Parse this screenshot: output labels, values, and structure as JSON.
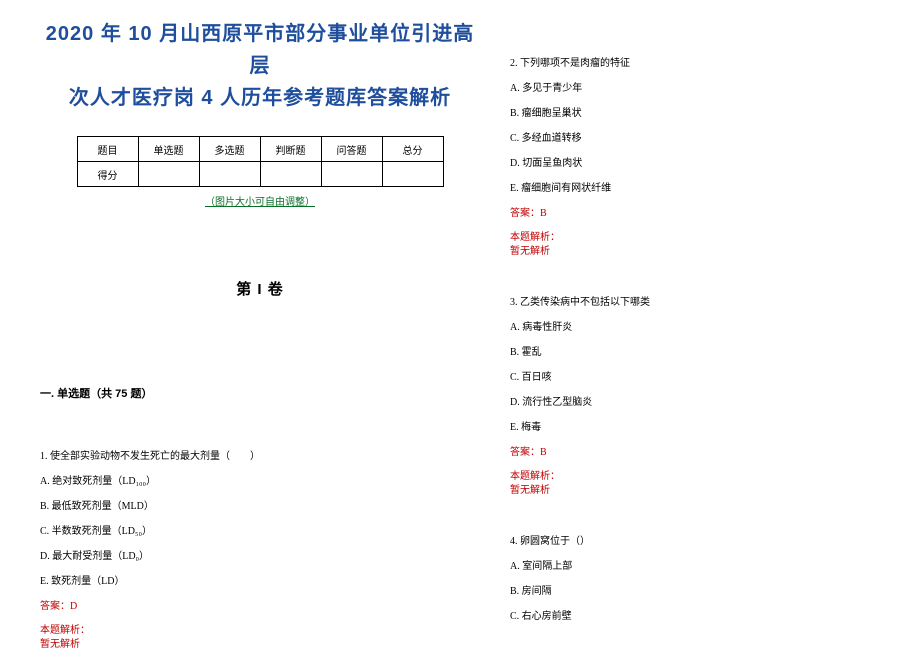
{
  "title_line1": "2020 年 10 月山西原平市部分事业单位引进高层",
  "title_line2": "次人才医疗岗 4 人历年参考题库答案解析",
  "score_table": {
    "header": [
      "题目",
      "单选题",
      "多选题",
      "判断题",
      "问答题",
      "总分"
    ],
    "row_label": "得分"
  },
  "adjust_note": "（图片大小可自由调整）",
  "volume_label": "第 I 卷",
  "section_single": "一. 单选题（共 75 题）",
  "answer_prefix": "答案：",
  "explain_label": "本题解析：",
  "no_explain": "暂无解析",
  "q1": {
    "stem": "1. 使全部实验动物不发生死亡的最大剂量（　　）",
    "opts": [
      "A. 绝对致死剂量（LD₁₀₀）",
      "B. 最低致死剂量（MLD）",
      "C. 半数致死剂量（LD₅₀）",
      "D. 最大耐受剂量（LD₀）",
      "E. 致死剂量（LD）"
    ],
    "ans": "D"
  },
  "q2": {
    "stem": "2. 下列哪项不是肉瘤的特征",
    "opts": [
      "A. 多见于青少年",
      "B. 瘤细胞呈巢状",
      "C. 多经血道转移",
      "D. 切面呈鱼肉状",
      "E. 瘤细胞间有网状纤维"
    ],
    "ans": "B"
  },
  "q3": {
    "stem": "3. 乙类传染病中不包括以下哪类",
    "opts": [
      "A. 病毒性肝炎",
      "B. 霍乱",
      "C. 百日咳",
      "D. 流行性乙型脑炎",
      "E. 梅毒"
    ],
    "ans": "B"
  },
  "q4": {
    "stem": "4. 卵圆窝位于（）",
    "opts": [
      "A. 室间隔上部",
      "B. 房间隔",
      "C. 右心房前壁"
    ]
  },
  "colors": {
    "title": "#1f4e9c",
    "note": "#0b6e28",
    "answer": "#c00000",
    "text": "#000000",
    "background": "#ffffff",
    "border": "#000000"
  }
}
